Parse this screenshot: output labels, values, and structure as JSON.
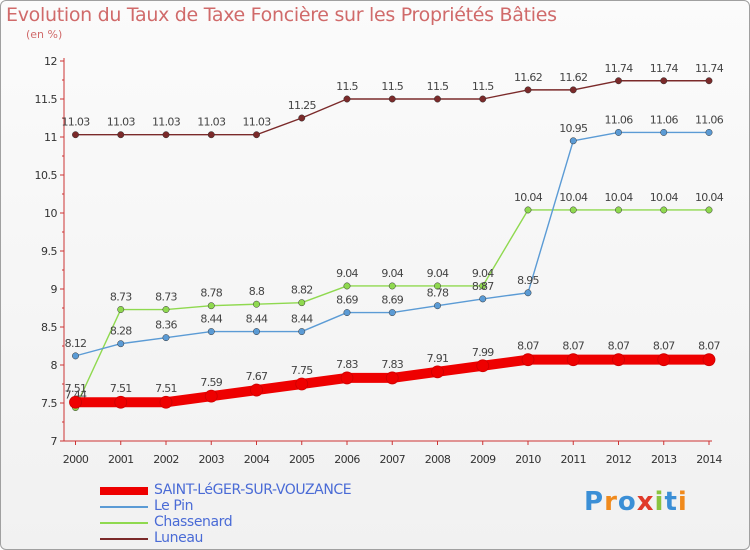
{
  "chart_data": {
    "type": "line",
    "title": "Evolution du Taux de Taxe Foncière sur les Propriétés Bâties",
    "subtitle": "(en %)",
    "x": [
      "2000",
      "2001",
      "2002",
      "2003",
      "2004",
      "2005",
      "2006",
      "2007",
      "2008",
      "2009",
      "2010",
      "2011",
      "2012",
      "2013",
      "2014"
    ],
    "ylim": [
      7,
      12
    ],
    "yticks": [
      "7",
      "7.5",
      "8",
      "8.5",
      "9",
      "9.5",
      "10",
      "10.5",
      "11",
      "11.5",
      "12"
    ],
    "grid": false,
    "legend_position": "bottom-left",
    "series": [
      {
        "name": "SAINT-LéGER-SUR-VOUZANCE",
        "color": "#ee0000",
        "values": [
          7.51,
          7.51,
          7.51,
          7.59,
          7.67,
          7.75,
          7.83,
          7.83,
          7.91,
          7.99,
          8.07,
          8.07,
          8.07,
          8.07,
          8.07
        ],
        "labels": [
          "7.51",
          "7.51",
          "7.51",
          "7.59",
          "7.67",
          "7.75",
          "7.83",
          "7.83",
          "7.91",
          "7.99",
          "8.07",
          "8.07",
          "8.07",
          "8.07",
          "8.07"
        ]
      },
      {
        "name": "Le Pin",
        "color": "#5b9bd5",
        "values": [
          8.12,
          8.28,
          8.36,
          8.44,
          8.44,
          8.44,
          8.69,
          8.69,
          8.78,
          8.87,
          8.95,
          10.95,
          11.06,
          11.06,
          11.06
        ],
        "labels": [
          "8.12",
          "8.28",
          "8.36",
          "8.44",
          "8.44",
          "8.44",
          "8.69",
          "8.69",
          "8.78",
          "8.87",
          "8.95",
          "10.95",
          "11.06",
          "11.06",
          "11.06"
        ]
      },
      {
        "name": "Chassenard",
        "color": "#8fd94f",
        "values": [
          7.44,
          8.73,
          8.73,
          8.78,
          8.8,
          8.82,
          9.04,
          9.04,
          9.04,
          9.04,
          10.04,
          10.04,
          10.04,
          10.04,
          10.04
        ],
        "labels": [
          "7.44",
          "8.73",
          "8.73",
          "8.78",
          "8.8",
          "8.82",
          "9.04",
          "9.04",
          "9.04",
          "9.04",
          "10.04",
          "10.04",
          "10.04",
          "10.04",
          "10.04"
        ]
      },
      {
        "name": "Luneau",
        "color": "#7b2a2a",
        "values": [
          11.03,
          11.03,
          11.03,
          11.03,
          11.03,
          11.25,
          11.5,
          11.5,
          11.5,
          11.5,
          11.62,
          11.62,
          11.74,
          11.74,
          11.74
        ],
        "labels": [
          "11.03",
          "11.03",
          "11.03",
          "11.03",
          "11.03",
          "11.25",
          "11.5",
          "11.5",
          "11.5",
          "11.5",
          "11.62",
          "11.62",
          "11.74",
          "11.74",
          "11.74"
        ]
      }
    ]
  },
  "legend": {
    "items": [
      {
        "label": "SAINT-LéGER-SUR-VOUZANCE",
        "color": "#ee0000"
      },
      {
        "label": "Le Pin",
        "color": "#5b9bd5"
      },
      {
        "label": "Chassenard",
        "color": "#8fd94f"
      },
      {
        "label": "Luneau",
        "color": "#7b2a2a"
      }
    ]
  },
  "logo": {
    "text": "Proxiti",
    "letter_colors": [
      "#3b8fd6",
      "#f08a1c",
      "#3b8fd6",
      "#e03a2a",
      "#8ac43f",
      "#3b8fd6",
      "#f08a1c"
    ]
  }
}
